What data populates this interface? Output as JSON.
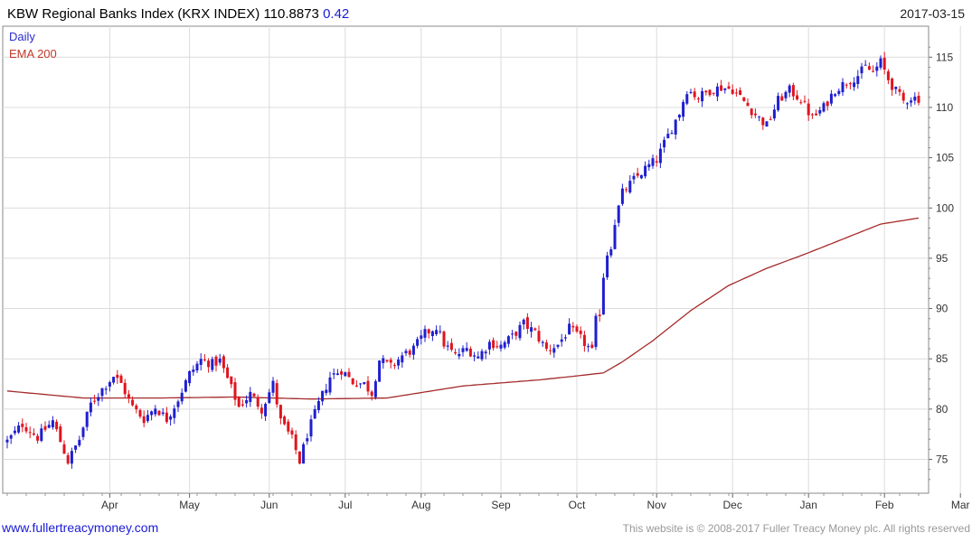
{
  "header": {
    "title": "KBW Regional Banks Index  (KRX INDEX) 110.8873",
    "change": "0.42",
    "date": "2017-03-15"
  },
  "legend": {
    "daily": "Daily",
    "ema": "EMA 200"
  },
  "footer": {
    "left": "www.fullertreacymoney.com",
    "right": "This website is © 2008-2017 Fuller Treacy Money plc. All rights reserved"
  },
  "colors": {
    "up": "#1f1fcf",
    "down": "#e0141e",
    "ema": "#a52a2a",
    "grid": "#dcdcdc"
  },
  "chart_data": {
    "type": "candlestick",
    "series_names": [
      "Daily",
      "EMA 200"
    ],
    "ylim": [
      72,
      117
    ],
    "y_ticks": [
      75,
      80,
      85,
      90,
      95,
      100,
      105,
      110,
      115
    ],
    "x_ticks": [
      "Apr",
      "May",
      "Jun",
      "Jul",
      "Aug",
      "Sep",
      "Oct",
      "Nov",
      "Dec",
      "Jan",
      "Feb",
      "Mar"
    ],
    "x_tick_pos": [
      27,
      48,
      69,
      89,
      109,
      130,
      150,
      171,
      191,
      211,
      231,
      251
    ],
    "n_days": 263,
    "price_keypoints": [
      [
        0,
        76.8
      ],
      [
        4,
        78.5
      ],
      [
        8,
        77.2
      ],
      [
        12,
        78.8
      ],
      [
        16,
        74.8
      ],
      [
        19,
        77.0
      ],
      [
        22,
        80.5
      ],
      [
        25,
        82.0
      ],
      [
        28,
        83.3
      ],
      [
        30,
        82.5
      ],
      [
        33,
        80.2
      ],
      [
        36,
        79.0
      ],
      [
        39,
        80.2
      ],
      [
        42,
        79.0
      ],
      [
        45,
        81.0
      ],
      [
        48,
        83.5
      ],
      [
        51,
        84.9
      ],
      [
        54,
        84.5
      ],
      [
        56,
        84.8
      ],
      [
        58,
        83.0
      ],
      [
        61,
        80.2
      ],
      [
        64,
        81.5
      ],
      [
        67,
        80.0
      ],
      [
        70,
        82.5
      ],
      [
        72,
        78.8
      ],
      [
        75,
        77.0
      ],
      [
        77,
        74.8
      ],
      [
        79,
        77.5
      ],
      [
        82,
        80.5
      ],
      [
        85,
        83.2
      ],
      [
        88,
        83.9
      ],
      [
        91,
        82.7
      ],
      [
        94,
        82.5
      ],
      [
        96,
        81.6
      ],
      [
        98,
        84.9
      ],
      [
        101,
        84.2
      ],
      [
        104,
        85.3
      ],
      [
        107,
        86.0
      ],
      [
        110,
        87.5
      ],
      [
        113,
        88.2
      ],
      [
        115,
        86.5
      ],
      [
        118,
        85.3
      ],
      [
        121,
        86.0
      ],
      [
        124,
        85.2
      ],
      [
        127,
        86.6
      ],
      [
        130,
        86.3
      ],
      [
        133,
        87.2
      ],
      [
        136,
        88.5
      ],
      [
        139,
        87.6
      ],
      [
        142,
        85.9
      ],
      [
        145,
        86.4
      ],
      [
        148,
        88.0
      ],
      [
        151,
        87.0
      ],
      [
        154,
        85.7
      ],
      [
        155,
        88.8
      ],
      [
        156,
        89.6
      ],
      [
        157,
        93.3
      ],
      [
        158,
        95.5
      ],
      [
        159,
        96.3
      ],
      [
        160,
        98.6
      ],
      [
        162,
        101.5
      ],
      [
        165,
        102.8
      ],
      [
        168,
        103.9
      ],
      [
        171,
        104.8
      ],
      [
        174,
        107.2
      ],
      [
        177,
        109.5
      ],
      [
        179,
        111.8
      ],
      [
        182,
        111.0
      ],
      [
        185,
        111.7
      ],
      [
        188,
        112.0
      ],
      [
        191,
        111.8
      ],
      [
        194,
        110.6
      ],
      [
        197,
        109.3
      ],
      [
        200,
        108.2
      ],
      [
        203,
        110.7
      ],
      [
        206,
        111.7
      ],
      [
        209,
        110.8
      ],
      [
        212,
        108.9
      ],
      [
        215,
        110.0
      ],
      [
        218,
        111.8
      ],
      [
        221,
        112.5
      ],
      [
        224,
        113.2
      ],
      [
        226,
        114.0
      ],
      [
        228,
        113.5
      ],
      [
        230,
        114.5
      ],
      [
        232,
        112.8
      ],
      [
        234,
        111.6
      ],
      [
        236,
        110.6
      ],
      [
        238,
        111.0
      ],
      [
        240,
        110.9
      ]
    ],
    "ema_keypoints": [
      [
        0,
        81.8
      ],
      [
        20,
        81.1
      ],
      [
        40,
        81.1
      ],
      [
        60,
        81.2
      ],
      [
        80,
        81.0
      ],
      [
        100,
        81.1
      ],
      [
        120,
        82.3
      ],
      [
        140,
        82.9
      ],
      [
        150,
        83.3
      ],
      [
        157,
        83.6
      ],
      [
        162,
        84.7
      ],
      [
        170,
        86.8
      ],
      [
        180,
        89.8
      ],
      [
        190,
        92.3
      ],
      [
        200,
        94.0
      ],
      [
        210,
        95.4
      ],
      [
        220,
        96.9
      ],
      [
        230,
        98.4
      ],
      [
        240,
        99.0
      ]
    ]
  }
}
